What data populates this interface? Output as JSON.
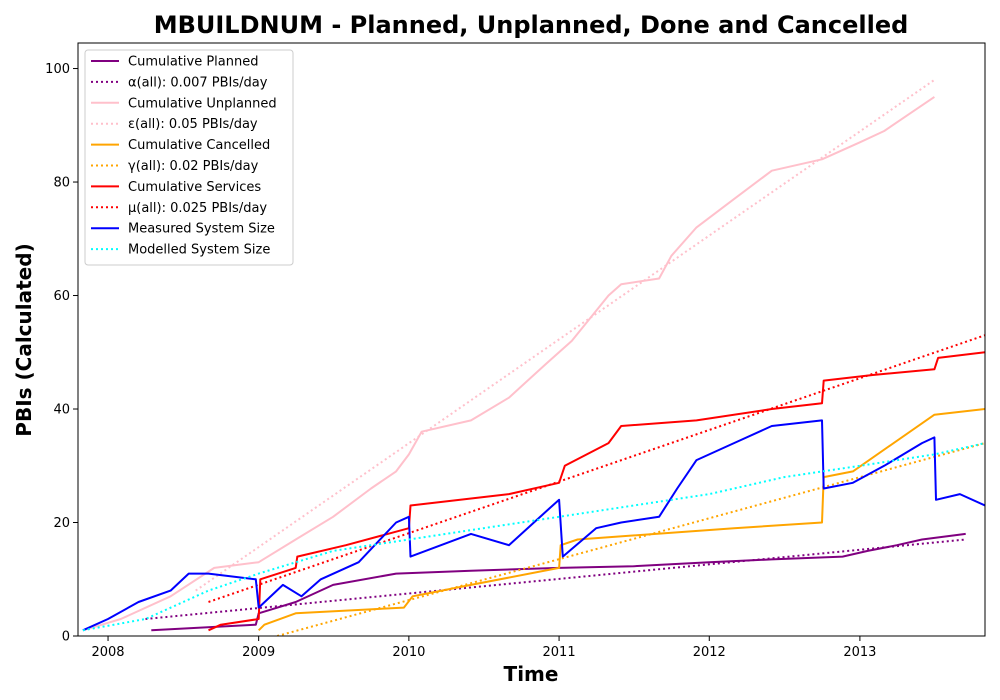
{
  "chart_data": {
    "type": "line",
    "title": "MBUILDNUM - Planned, Unplanned, Done  and Cancelled",
    "xlabel": "Time",
    "ylabel": "PBIs (Calculated)",
    "xlim": [
      "2007-10-20",
      "2013-11-01"
    ],
    "ylim": [
      0,
      104.5
    ],
    "x_ticks": [
      "2008",
      "2009",
      "2010",
      "2011",
      "2012",
      "2013"
    ],
    "y_ticks": [
      0,
      20,
      40,
      60,
      80,
      100
    ],
    "grid": false,
    "legend_position": "top-left",
    "series": [
      {
        "name": "Cumulative Planned",
        "color": "#800080",
        "style": "solid",
        "points": [
          [
            "2008-04-15",
            1
          ],
          [
            "2008-12-25",
            2
          ],
          [
            "2009-01-01",
            4
          ],
          [
            "2009-04-01",
            6
          ],
          [
            "2009-07-01",
            9
          ],
          [
            "2009-12-01",
            11
          ],
          [
            "2010-06-01",
            11.5
          ],
          [
            "2011-01-01",
            12
          ],
          [
            "2011-07-01",
            12.3
          ],
          [
            "2012-01-01",
            13
          ],
          [
            "2012-06-01",
            13.5
          ],
          [
            "2012-11-20",
            14
          ],
          [
            "2013-01-20",
            15
          ],
          [
            "2013-04-01",
            16
          ],
          [
            "2013-06-01",
            17
          ],
          [
            "2013-09-15",
            18
          ]
        ]
      },
      {
        "name": "α(all): 0.007 PBIs/day",
        "color": "#800080",
        "style": "dotted",
        "points": [
          [
            "2008-04-01",
            3
          ],
          [
            "2013-09-15",
            17
          ]
        ]
      },
      {
        "name": "Cumulative Unplanned",
        "color": "#ffc0cb",
        "style": "solid",
        "points": [
          [
            "2007-11-01",
            1
          ],
          [
            "2008-02-01",
            3
          ],
          [
            "2008-06-01",
            7
          ],
          [
            "2008-09-15",
            12
          ],
          [
            "2009-01-01",
            13
          ],
          [
            "2009-04-01",
            17
          ],
          [
            "2009-07-01",
            21
          ],
          [
            "2009-10-01",
            26
          ],
          [
            "2009-12-01",
            29
          ],
          [
            "2010-01-01",
            32
          ],
          [
            "2010-02-01",
            36
          ],
          [
            "2010-06-01",
            38
          ],
          [
            "2010-09-01",
            42
          ],
          [
            "2010-12-01",
            48
          ],
          [
            "2011-02-01",
            52
          ],
          [
            "2011-05-01",
            60
          ],
          [
            "2011-06-01",
            62
          ],
          [
            "2011-09-01",
            63
          ],
          [
            "2011-10-01",
            67
          ],
          [
            "2011-12-01",
            72
          ],
          [
            "2012-03-01",
            77
          ],
          [
            "2012-06-01",
            82
          ],
          [
            "2012-10-01",
            84
          ],
          [
            "2013-01-01",
            87
          ],
          [
            "2013-03-01",
            89
          ],
          [
            "2013-05-01",
            92
          ],
          [
            "2013-07-01",
            95
          ]
        ]
      },
      {
        "name": "ε(all): 0.05 PBIs/day",
        "color": "#ffc0cb",
        "style": "dotted",
        "points": [
          [
            "2008-08-01",
            8
          ],
          [
            "2013-07-01",
            98
          ]
        ]
      },
      {
        "name": "Cumulative Cancelled",
        "color": "#ffa500",
        "style": "solid",
        "points": [
          [
            "2009-01-01",
            1
          ],
          [
            "2009-01-15",
            2
          ],
          [
            "2009-04-01",
            4
          ],
          [
            "2009-12-20",
            5
          ],
          [
            "2010-01-10",
            7
          ],
          [
            "2010-06-01",
            9
          ],
          [
            "2011-01-01",
            12
          ],
          [
            "2011-01-05",
            16
          ],
          [
            "2011-02-15",
            17
          ],
          [
            "2012-03-01",
            19
          ],
          [
            "2012-10-01",
            20
          ],
          [
            "2012-10-05",
            28
          ],
          [
            "2012-12-15",
            29
          ],
          [
            "2013-07-01",
            39
          ],
          [
            "2013-11-01",
            40
          ]
        ]
      },
      {
        "name": "γ(all): 0.02 PBIs/day",
        "color": "#ffa500",
        "style": "dotted",
        "points": [
          [
            "2009-02-15",
            0
          ],
          [
            "2013-11-01",
            34
          ]
        ]
      },
      {
        "name": "Cumulative Services",
        "color": "#ff0000",
        "style": "solid",
        "points": [
          [
            "2008-09-01",
            1
          ],
          [
            "2008-10-01",
            2
          ],
          [
            "2009-01-01",
            3
          ],
          [
            "2009-01-05",
            10
          ],
          [
            "2009-04-01",
            12
          ],
          [
            "2009-04-05",
            14
          ],
          [
            "2009-08-01",
            16
          ],
          [
            "2010-01-01",
            19
          ],
          [
            "2010-01-05",
            23
          ],
          [
            "2010-09-01",
            25
          ],
          [
            "2011-01-01",
            27
          ],
          [
            "2011-01-15",
            30
          ],
          [
            "2011-05-01",
            34
          ],
          [
            "2011-06-01",
            37
          ],
          [
            "2011-12-01",
            38
          ],
          [
            "2012-06-01",
            40
          ],
          [
            "2012-10-01",
            41
          ],
          [
            "2012-10-05",
            45
          ],
          [
            "2013-02-01",
            46
          ],
          [
            "2013-07-01",
            47
          ],
          [
            "2013-07-10",
            49
          ],
          [
            "2013-11-01",
            50
          ]
        ]
      },
      {
        "name": "μ(all): 0.025 PBIs/day",
        "color": "#ff0000",
        "style": "dotted",
        "points": [
          [
            "2008-09-01",
            6
          ],
          [
            "2013-11-01",
            53
          ]
        ]
      },
      {
        "name": "Measured System Size",
        "color": "#0000ff",
        "style": "solid",
        "points": [
          [
            "2007-11-01",
            1
          ],
          [
            "2008-01-01",
            3
          ],
          [
            "2008-03-15",
            6
          ],
          [
            "2008-06-01",
            8
          ],
          [
            "2008-07-15",
            11
          ],
          [
            "2008-09-01",
            11
          ],
          [
            "2008-12-25",
            10
          ],
          [
            "2009-01-01",
            5
          ],
          [
            "2009-03-01",
            9
          ],
          [
            "2009-04-15",
            7
          ],
          [
            "2009-06-01",
            10
          ],
          [
            "2009-09-01",
            13
          ],
          [
            "2009-12-01",
            20
          ],
          [
            "2010-01-01",
            21
          ],
          [
            "2010-01-05",
            14
          ],
          [
            "2010-06-01",
            18
          ],
          [
            "2010-09-01",
            16
          ],
          [
            "2010-12-01",
            22
          ],
          [
            "2011-01-01",
            24
          ],
          [
            "2011-01-10",
            14
          ],
          [
            "2011-04-01",
            19
          ],
          [
            "2011-06-01",
            20
          ],
          [
            "2011-09-01",
            21
          ],
          [
            "2011-10-15",
            26
          ],
          [
            "2011-12-01",
            31
          ],
          [
            "2012-03-01",
            34
          ],
          [
            "2012-06-01",
            37
          ],
          [
            "2012-10-01",
            38
          ],
          [
            "2012-10-05",
            26
          ],
          [
            "2012-12-15",
            27
          ],
          [
            "2013-03-01",
            30
          ],
          [
            "2013-06-01",
            34
          ],
          [
            "2013-07-01",
            35
          ],
          [
            "2013-07-05",
            24
          ],
          [
            "2013-09-01",
            25
          ],
          [
            "2013-11-01",
            23
          ]
        ]
      },
      {
        "name": "Modelled System Size",
        "color": "#00ffff",
        "style": "dotted",
        "points": [
          [
            "2007-11-01",
            1
          ],
          [
            "2008-04-01",
            3
          ],
          [
            "2008-09-01",
            8
          ],
          [
            "2009-01-01",
            11
          ],
          [
            "2009-07-01",
            15
          ],
          [
            "2010-01-01",
            17
          ],
          [
            "2010-07-01",
            19
          ],
          [
            "2011-01-01",
            21
          ],
          [
            "2011-07-01",
            23
          ],
          [
            "2012-01-01",
            25
          ],
          [
            "2012-07-01",
            28
          ],
          [
            "2013-01-01",
            30
          ],
          [
            "2013-07-01",
            32
          ],
          [
            "2013-11-01",
            34
          ]
        ]
      }
    ]
  }
}
